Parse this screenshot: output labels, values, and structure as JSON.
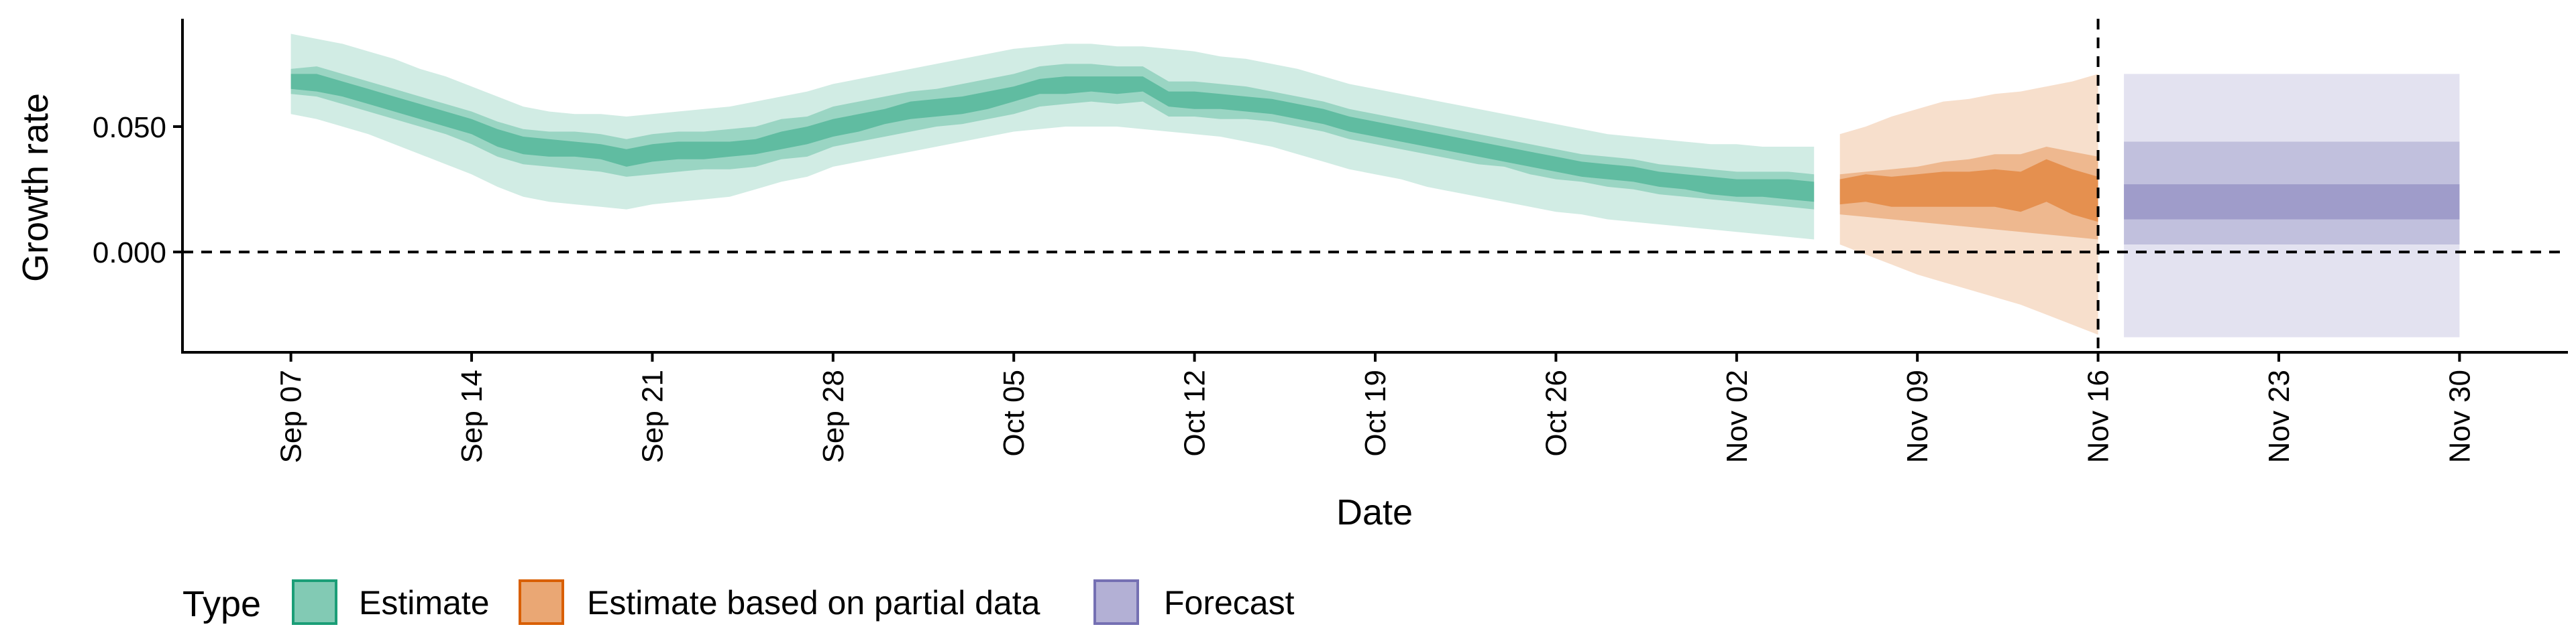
{
  "chart_data": {
    "type": "area",
    "xlabel": "Date",
    "ylabel": "Growth rate",
    "x_tick_labels": [
      "Sep 07",
      "Sep 14",
      "Sep 21",
      "Sep 28",
      "Oct 05",
      "Oct 12",
      "Oct 19",
      "Oct 26",
      "Nov 02",
      "Nov 09",
      "Nov 16",
      "Nov 23",
      "Nov 30"
    ],
    "x_tick_days": [
      0,
      7,
      14,
      21,
      28,
      35,
      42,
      49,
      56,
      63,
      70,
      77,
      84
    ],
    "xlim_days": [
      -4.2,
      88.2
    ],
    "y_ticks": [
      0,
      0.05
    ],
    "y_tick_labels": [
      "0.000",
      "0.050"
    ],
    "ylim": [
      -0.04,
      0.093
    ],
    "reference_hline": 0,
    "reference_vline_day": 70,
    "grid": false,
    "legend_position": "bottom",
    "legend_title": "Type",
    "series": [
      {
        "name": "Estimate",
        "color": "#1b9e77",
        "x_day": [
          0,
          1,
          2,
          3,
          4,
          5,
          6,
          7,
          8,
          9,
          10,
          11,
          12,
          13,
          14,
          15,
          16,
          17,
          18,
          19,
          20,
          21,
          22,
          23,
          24,
          25,
          26,
          27,
          28,
          29,
          30,
          31,
          32,
          33,
          34,
          35,
          36,
          37,
          38,
          39,
          40,
          41,
          42,
          43,
          44,
          45,
          46,
          47,
          48,
          49,
          50,
          51,
          52,
          53,
          54,
          55,
          56,
          57,
          58,
          59
        ],
        "median": [
          0.068,
          0.068,
          0.065,
          0.062,
          0.059,
          0.056,
          0.053,
          0.05,
          0.045,
          0.042,
          0.041,
          0.041,
          0.04,
          0.038,
          0.04,
          0.041,
          0.041,
          0.041,
          0.042,
          0.045,
          0.046,
          0.05,
          0.052,
          0.054,
          0.056,
          0.057,
          0.059,
          0.061,
          0.063,
          0.066,
          0.067,
          0.067,
          0.066,
          0.067,
          0.061,
          0.061,
          0.06,
          0.059,
          0.058,
          0.056,
          0.054,
          0.051,
          0.049,
          0.047,
          0.045,
          0.043,
          0.041,
          0.039,
          0.037,
          0.035,
          0.033,
          0.032,
          0.031,
          0.029,
          0.028,
          0.027,
          0.026,
          0.025,
          0.025,
          0.024
        ],
        "ci20": [
          [
            0.065,
            0.071
          ],
          [
            0.064,
            0.071
          ],
          [
            0.062,
            0.068
          ],
          [
            0.059,
            0.065
          ],
          [
            0.056,
            0.062
          ],
          [
            0.053,
            0.059
          ],
          [
            0.05,
            0.056
          ],
          [
            0.047,
            0.053
          ],
          [
            0.042,
            0.049
          ],
          [
            0.039,
            0.046
          ],
          [
            0.038,
            0.045
          ],
          [
            0.038,
            0.044
          ],
          [
            0.037,
            0.043
          ],
          [
            0.034,
            0.041
          ],
          [
            0.036,
            0.043
          ],
          [
            0.037,
            0.044
          ],
          [
            0.037,
            0.044
          ],
          [
            0.038,
            0.044
          ],
          [
            0.039,
            0.045
          ],
          [
            0.041,
            0.048
          ],
          [
            0.043,
            0.05
          ],
          [
            0.046,
            0.053
          ],
          [
            0.048,
            0.055
          ],
          [
            0.051,
            0.057
          ],
          [
            0.053,
            0.06
          ],
          [
            0.054,
            0.061
          ],
          [
            0.055,
            0.062
          ],
          [
            0.057,
            0.064
          ],
          [
            0.06,
            0.066
          ],
          [
            0.063,
            0.069
          ],
          [
            0.063,
            0.07
          ],
          [
            0.064,
            0.07
          ],
          [
            0.063,
            0.07
          ],
          [
            0.064,
            0.07
          ],
          [
            0.058,
            0.064
          ],
          [
            0.057,
            0.064
          ],
          [
            0.057,
            0.063
          ],
          [
            0.056,
            0.062
          ],
          [
            0.055,
            0.061
          ],
          [
            0.053,
            0.059
          ],
          [
            0.051,
            0.057
          ],
          [
            0.048,
            0.054
          ],
          [
            0.046,
            0.052
          ],
          [
            0.044,
            0.05
          ],
          [
            0.042,
            0.048
          ],
          [
            0.04,
            0.046
          ],
          [
            0.038,
            0.044
          ],
          [
            0.036,
            0.042
          ],
          [
            0.034,
            0.04
          ],
          [
            0.032,
            0.038
          ],
          [
            0.03,
            0.036
          ],
          [
            0.029,
            0.035
          ],
          [
            0.028,
            0.034
          ],
          [
            0.026,
            0.032
          ],
          [
            0.025,
            0.031
          ],
          [
            0.023,
            0.03
          ],
          [
            0.022,
            0.029
          ],
          [
            0.022,
            0.029
          ],
          [
            0.021,
            0.029
          ],
          [
            0.02,
            0.028
          ]
        ],
        "ci50": [
          [
            0.063,
            0.073
          ],
          [
            0.062,
            0.074
          ],
          [
            0.059,
            0.071
          ],
          [
            0.056,
            0.068
          ],
          [
            0.053,
            0.065
          ],
          [
            0.05,
            0.062
          ],
          [
            0.047,
            0.059
          ],
          [
            0.043,
            0.056
          ],
          [
            0.038,
            0.052
          ],
          [
            0.035,
            0.049
          ],
          [
            0.034,
            0.048
          ],
          [
            0.033,
            0.048
          ],
          [
            0.032,
            0.047
          ],
          [
            0.03,
            0.045
          ],
          [
            0.031,
            0.047
          ],
          [
            0.032,
            0.048
          ],
          [
            0.033,
            0.048
          ],
          [
            0.033,
            0.049
          ],
          [
            0.034,
            0.05
          ],
          [
            0.037,
            0.053
          ],
          [
            0.038,
            0.054
          ],
          [
            0.042,
            0.058
          ],
          [
            0.044,
            0.06
          ],
          [
            0.046,
            0.062
          ],
          [
            0.048,
            0.064
          ],
          [
            0.05,
            0.065
          ],
          [
            0.051,
            0.067
          ],
          [
            0.053,
            0.069
          ],
          [
            0.055,
            0.071
          ],
          [
            0.058,
            0.074
          ],
          [
            0.059,
            0.075
          ],
          [
            0.06,
            0.075
          ],
          [
            0.059,
            0.074
          ],
          [
            0.06,
            0.074
          ],
          [
            0.054,
            0.068
          ],
          [
            0.054,
            0.068
          ],
          [
            0.053,
            0.067
          ],
          [
            0.053,
            0.066
          ],
          [
            0.052,
            0.064
          ],
          [
            0.05,
            0.062
          ],
          [
            0.048,
            0.06
          ],
          [
            0.045,
            0.057
          ],
          [
            0.043,
            0.055
          ],
          [
            0.041,
            0.053
          ],
          [
            0.039,
            0.051
          ],
          [
            0.037,
            0.049
          ],
          [
            0.035,
            0.047
          ],
          [
            0.034,
            0.045
          ],
          [
            0.031,
            0.043
          ],
          [
            0.029,
            0.041
          ],
          [
            0.028,
            0.039
          ],
          [
            0.026,
            0.038
          ],
          [
            0.025,
            0.037
          ],
          [
            0.023,
            0.035
          ],
          [
            0.022,
            0.034
          ],
          [
            0.021,
            0.033
          ],
          [
            0.02,
            0.032
          ],
          [
            0.019,
            0.032
          ],
          [
            0.018,
            0.032
          ],
          [
            0.017,
            0.031
          ]
        ],
        "ci90": [
          [
            0.055,
            0.087
          ],
          [
            0.053,
            0.085
          ],
          [
            0.05,
            0.083
          ],
          [
            0.047,
            0.08
          ],
          [
            0.043,
            0.077
          ],
          [
            0.039,
            0.073
          ],
          [
            0.035,
            0.07
          ],
          [
            0.031,
            0.066
          ],
          [
            0.026,
            0.062
          ],
          [
            0.022,
            0.058
          ],
          [
            0.02,
            0.056
          ],
          [
            0.019,
            0.055
          ],
          [
            0.018,
            0.055
          ],
          [
            0.017,
            0.054
          ],
          [
            0.019,
            0.055
          ],
          [
            0.02,
            0.056
          ],
          [
            0.021,
            0.057
          ],
          [
            0.022,
            0.058
          ],
          [
            0.025,
            0.06
          ],
          [
            0.028,
            0.062
          ],
          [
            0.03,
            0.064
          ],
          [
            0.034,
            0.067
          ],
          [
            0.036,
            0.069
          ],
          [
            0.038,
            0.071
          ],
          [
            0.04,
            0.073
          ],
          [
            0.042,
            0.075
          ],
          [
            0.044,
            0.077
          ],
          [
            0.046,
            0.079
          ],
          [
            0.048,
            0.081
          ],
          [
            0.049,
            0.082
          ],
          [
            0.05,
            0.083
          ],
          [
            0.05,
            0.083
          ],
          [
            0.05,
            0.082
          ],
          [
            0.049,
            0.082
          ],
          [
            0.048,
            0.081
          ],
          [
            0.047,
            0.08
          ],
          [
            0.046,
            0.078
          ],
          [
            0.044,
            0.077
          ],
          [
            0.042,
            0.075
          ],
          [
            0.039,
            0.073
          ],
          [
            0.036,
            0.07
          ],
          [
            0.033,
            0.067
          ],
          [
            0.031,
            0.065
          ],
          [
            0.029,
            0.063
          ],
          [
            0.026,
            0.061
          ],
          [
            0.024,
            0.059
          ],
          [
            0.022,
            0.057
          ],
          [
            0.02,
            0.055
          ],
          [
            0.018,
            0.053
          ],
          [
            0.016,
            0.051
          ],
          [
            0.015,
            0.049
          ],
          [
            0.013,
            0.047
          ],
          [
            0.012,
            0.046
          ],
          [
            0.011,
            0.045
          ],
          [
            0.01,
            0.044
          ],
          [
            0.009,
            0.043
          ],
          [
            0.008,
            0.043
          ],
          [
            0.007,
            0.042
          ],
          [
            0.006,
            0.042
          ],
          [
            0.005,
            0.042
          ]
        ]
      },
      {
        "name": "Estimate based on partial data",
        "color": "#d95f02",
        "x_day": [
          60,
          61,
          62,
          63,
          64,
          65,
          66,
          67,
          68,
          69,
          70
        ],
        "median": [
          0.023,
          0.025,
          0.024,
          0.024,
          0.025,
          0.025,
          0.026,
          0.024,
          0.029,
          0.024,
          0.021
        ],
        "ci20": [
          [
            0.019,
            0.029
          ],
          [
            0.02,
            0.031
          ],
          [
            0.018,
            0.03
          ],
          [
            0.018,
            0.031
          ],
          [
            0.018,
            0.032
          ],
          [
            0.018,
            0.032
          ],
          [
            0.018,
            0.033
          ],
          [
            0.016,
            0.032
          ],
          [
            0.02,
            0.037
          ],
          [
            0.015,
            0.033
          ],
          [
            0.012,
            0.03
          ]
        ],
        "ci50": [
          [
            0.015,
            0.031
          ],
          [
            0.014,
            0.032
          ],
          [
            0.013,
            0.033
          ],
          [
            0.012,
            0.034
          ],
          [
            0.011,
            0.036
          ],
          [
            0.01,
            0.037
          ],
          [
            0.009,
            0.039
          ],
          [
            0.008,
            0.039
          ],
          [
            0.007,
            0.042
          ],
          [
            0.006,
            0.04
          ],
          [
            0.005,
            0.038
          ]
        ],
        "ci90": [
          [
            0.003,
            0.047
          ],
          [
            -0.001,
            0.05
          ],
          [
            -0.005,
            0.054
          ],
          [
            -0.009,
            0.057
          ],
          [
            -0.012,
            0.06
          ],
          [
            -0.015,
            0.061
          ],
          [
            -0.018,
            0.063
          ],
          [
            -0.021,
            0.064
          ],
          [
            -0.025,
            0.066
          ],
          [
            -0.029,
            0.068
          ],
          [
            -0.033,
            0.071
          ]
        ]
      },
      {
        "name": "Forecast",
        "color": "#7570b3",
        "x_day": [
          71,
          84
        ],
        "median": [
          0.02,
          0.02
        ],
        "ci20": [
          [
            0.013,
            0.027
          ],
          [
            0.013,
            0.027
          ]
        ],
        "ci50": [
          [
            0.003,
            0.044
          ],
          [
            0.003,
            0.044
          ]
        ],
        "ci90": [
          [
            -0.034,
            0.071
          ],
          [
            -0.034,
            0.071
          ]
        ]
      }
    ]
  }
}
